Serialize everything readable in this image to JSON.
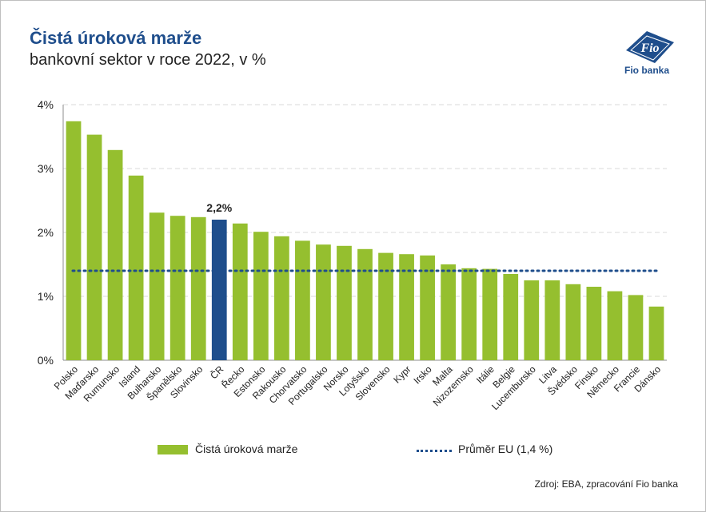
{
  "header": {
    "title": "Čistá úroková marže",
    "subtitle": "bankovní sektor v roce 2022, v %"
  },
  "logo": {
    "text": "Fio banka",
    "mark": "Fio",
    "icon": "fio-logo-icon"
  },
  "source": "Zdroj: EBA, zpracování Fio banka",
  "colors": {
    "bar": "#95bf2f",
    "highlight": "#1f4e8c",
    "avg_line": "#1f4e8c",
    "title": "#1f4e8c"
  },
  "chart_data": {
    "type": "bar",
    "categories": [
      "Polsko",
      "Maďarsko",
      "Rumunsko",
      "Island",
      "Bulharsko",
      "Španělsko",
      "Slovinsko",
      "ČR",
      "Řecko",
      "Estonsko",
      "Rakousko",
      "Chorvatsko",
      "Portugalsko",
      "Norsko",
      "Lotyšsko",
      "Slovensko",
      "Kypr",
      "Irsko",
      "Malta",
      "Nizozemsko",
      "Itálie",
      "Belgie",
      "Lucembursko",
      "Litva",
      "Švédsko",
      "Finsko",
      "Německo",
      "Francie",
      "Dánsko"
    ],
    "series": [
      {
        "name": "Čistá úroková marže",
        "values": [
          3.74,
          3.53,
          3.29,
          2.89,
          2.31,
          2.26,
          2.24,
          2.2,
          2.14,
          2.01,
          1.94,
          1.87,
          1.81,
          1.79,
          1.74,
          1.68,
          1.66,
          1.64,
          1.5,
          1.44,
          1.43,
          1.35,
          1.25,
          1.25,
          1.19,
          1.15,
          1.08,
          1.02,
          0.84
        ]
      }
    ],
    "highlight_category": "ČR",
    "highlight_label": "2,2%",
    "average": {
      "name": "Průměr EU (1,4 %)",
      "value": 1.4
    },
    "yticks": [
      "0%",
      "1%",
      "2%",
      "3%",
      "4%"
    ],
    "ylim": [
      0,
      4
    ],
    "xlabel": "",
    "ylabel": "",
    "grid": true,
    "legend_position": "bottom"
  }
}
